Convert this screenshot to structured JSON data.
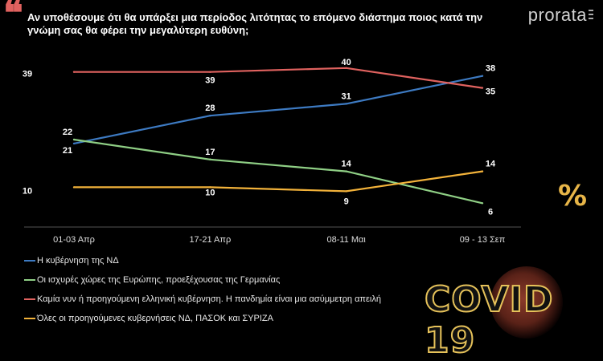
{
  "header": {
    "question": "Αν υποθέσουμε ότι θα υπάρξει μια περίοδος λιτότητας το επόμενο διάστημα ποιος κατά την γνώμη σας θα φέρει την μεγαλύτερη ευθύνη;",
    "brand": "prorata"
  },
  "badge": {
    "text": "COVID 19",
    "percent_symbol": "%"
  },
  "colors": {
    "background": "#000000",
    "accent": "#e0625f",
    "badge": "#e6c25a"
  },
  "chart_data": {
    "type": "line",
    "categories": [
      "01-03 Απρ",
      "17-21 Απρ",
      "08-11 Μαι",
      "09 - 13 Σεπ"
    ],
    "ylim": [
      0,
      45
    ],
    "grid": false,
    "legend_position": "bottom-left",
    "series": [
      {
        "name": "Η κυβέρνηση της ΝΔ",
        "color": "#3d7ac2",
        "values": [
          21,
          28,
          31,
          38
        ]
      },
      {
        "name": "Οι ισχυρές χώρες της Ευρώπης, προεξέχουσας της Γερμανίας",
        "color": "#8fcf85",
        "values": [
          22,
          17,
          14,
          6
        ]
      },
      {
        "name": "Καμία νυν ή προηγούμενη ελληνική κυβέρνηση. Η πανδημία είναι μια ασύμμετρη απειλή",
        "color": "#e0625f",
        "values": [
          39,
          39,
          40,
          35
        ]
      },
      {
        "name": "Όλες οι προηγούμενες κυβερνήσεις ΝΔ, ΠΑΣΟΚ και ΣΥΡΙΖΑ",
        "color": "#f2b23a",
        "values": [
          10,
          10,
          9,
          14
        ]
      }
    ]
  }
}
